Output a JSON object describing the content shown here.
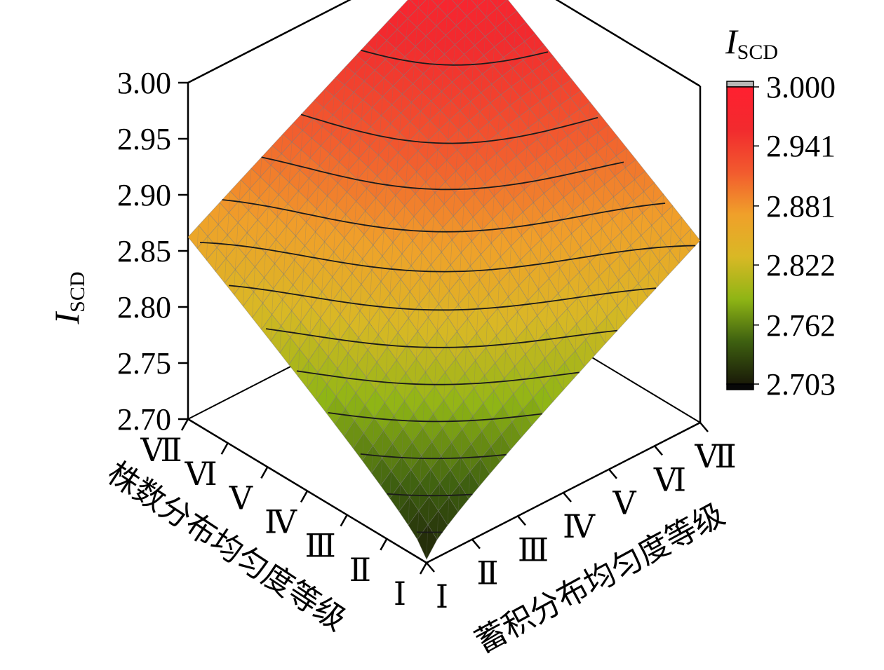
{
  "chart_data": {
    "type": "surface3d",
    "title": "",
    "z_axis": {
      "label_main": "I",
      "label_sub": "SCD",
      "range": [
        2.7,
        3.0
      ],
      "ticks": [
        "3.00",
        "2.95",
        "2.90",
        "2.85",
        "2.80",
        "2.75",
        "2.70"
      ]
    },
    "x_axis": {
      "label": "株数分布均匀度等级",
      "ticks": [
        "Ⅶ",
        "Ⅵ",
        "Ⅴ",
        "Ⅳ",
        "Ⅲ",
        "Ⅱ",
        "Ⅰ"
      ]
    },
    "y_axis": {
      "label": "蓄积分布均匀度等级",
      "ticks": [
        "Ⅰ",
        "Ⅱ",
        "Ⅲ",
        "Ⅳ",
        "Ⅴ",
        "Ⅵ",
        "Ⅶ"
      ]
    },
    "colorbar": {
      "title_main": "I",
      "title_sub": "SCD",
      "ticks": [
        "3.000",
        "2.941",
        "2.881",
        "2.822",
        "2.762",
        "2.703"
      ],
      "min": 2.703,
      "max": 3.0,
      "colors": [
        "#1a1a08",
        "#3e6010",
        "#8fb515",
        "#d9b825",
        "#f0a02a",
        "#f25a2e",
        "#f22a2e",
        "#ff2030"
      ]
    },
    "surface": {
      "corner_values": {
        "front_I_I": 2.703,
        "left_VII_I": 2.85,
        "right_I_VII": 2.85,
        "back_VII_VII": 3.0
      },
      "contour_levels": [
        2.72,
        2.74,
        2.76,
        2.78,
        2.8,
        2.82,
        2.84,
        2.86,
        2.88,
        2.9,
        2.92,
        2.95,
        2.98
      ]
    }
  }
}
